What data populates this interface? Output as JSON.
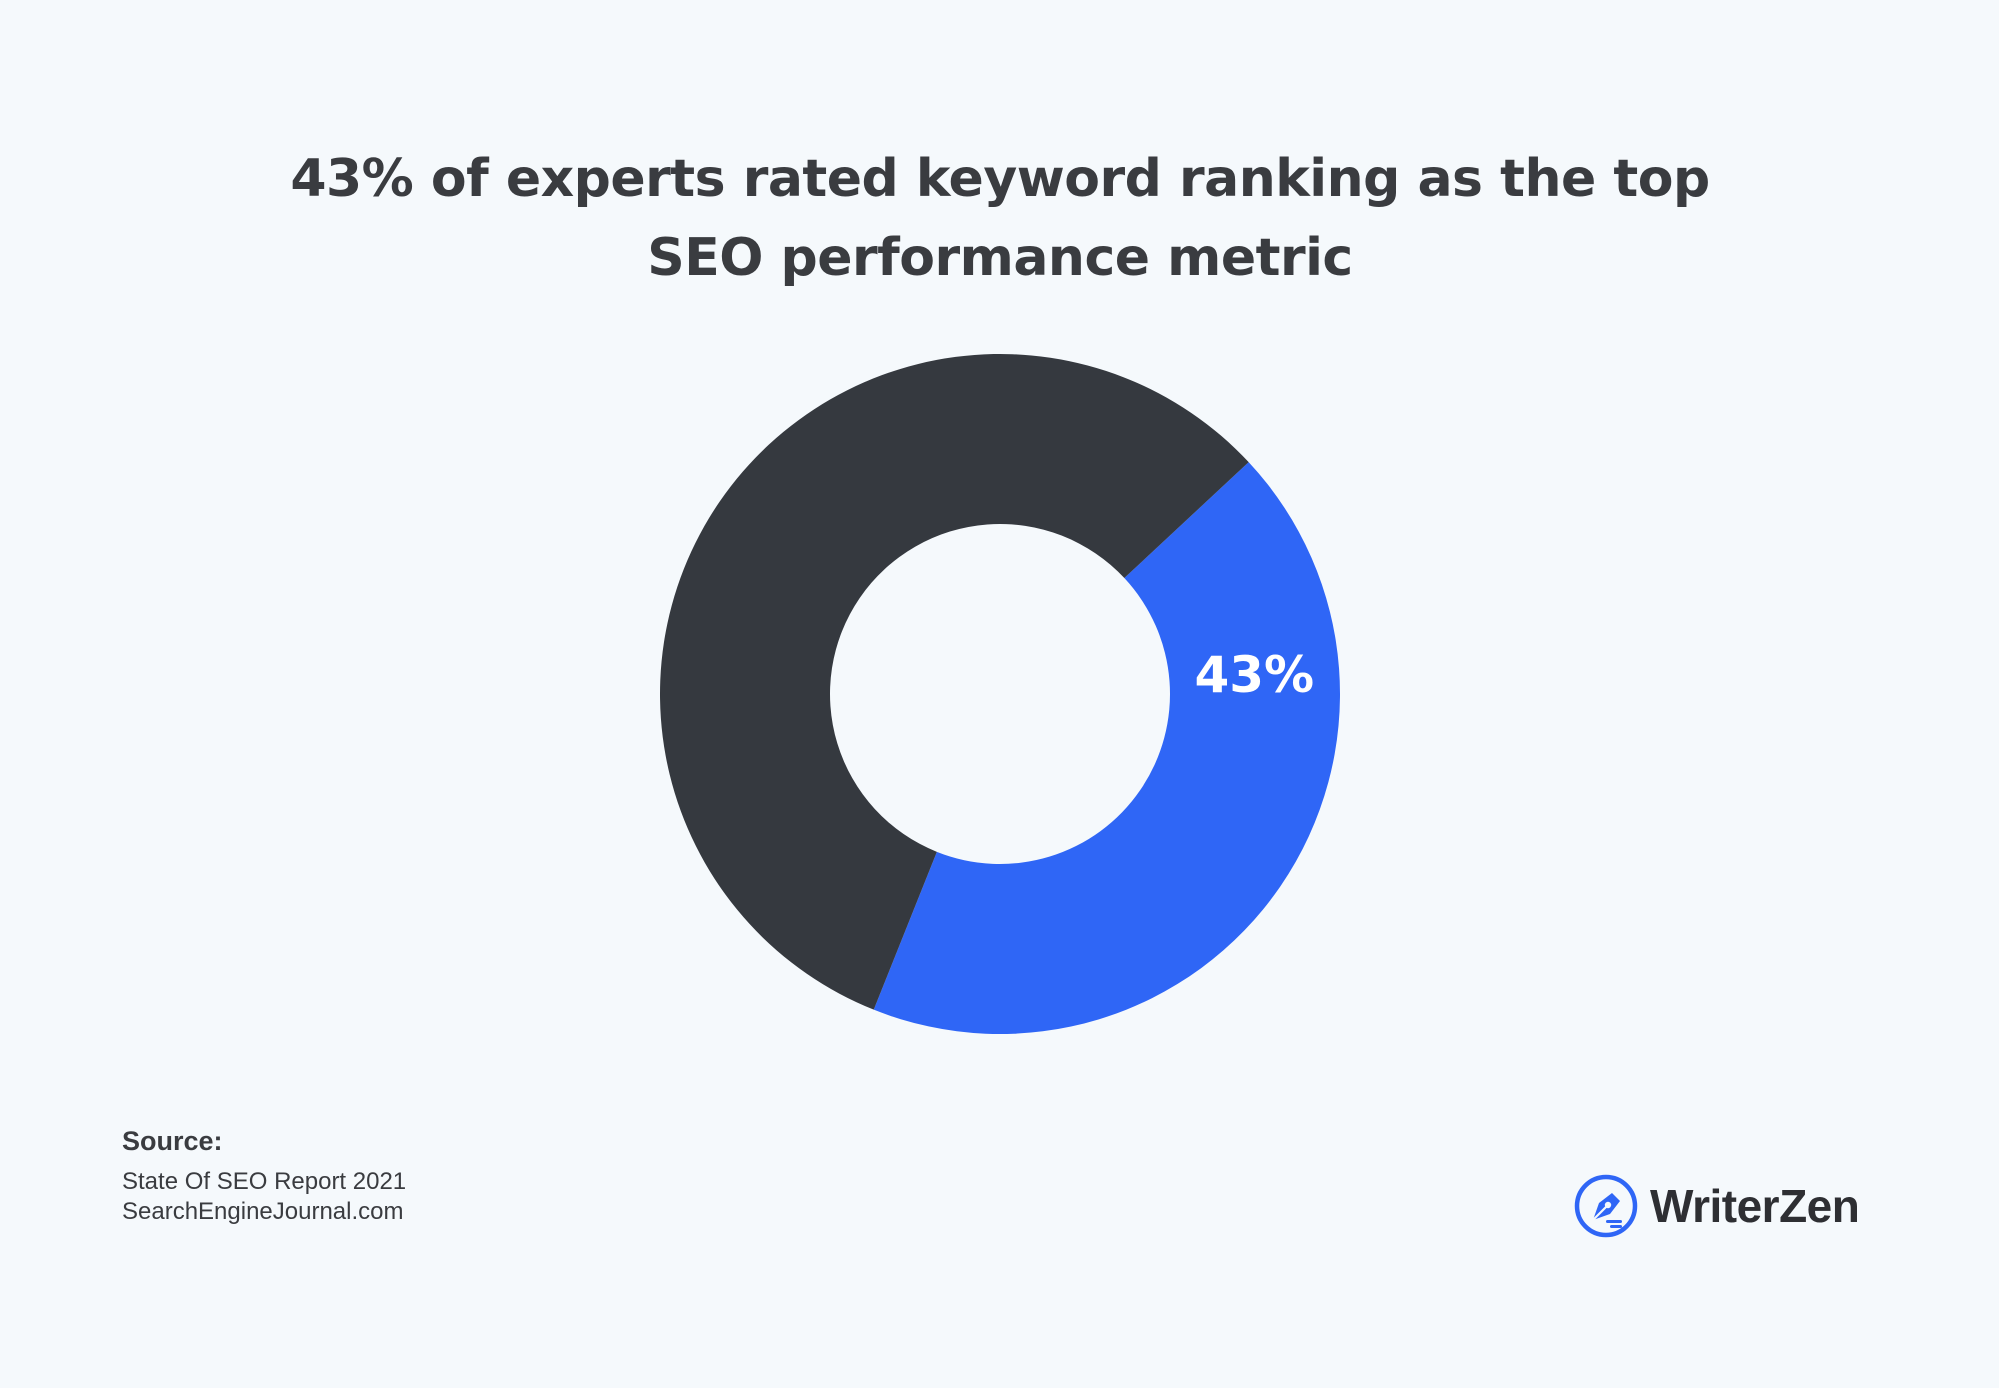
{
  "chart_data": {
    "type": "pie",
    "title": "43% of experts rated keyword ranking as the top SEO performance metric",
    "slices": [
      {
        "value": 43,
        "label": "43%",
        "color": "#2f66f6"
      },
      {
        "value": 57,
        "label": "",
        "color": "#35393f"
      }
    ],
    "donut": true
  },
  "source": {
    "heading": "Source:",
    "lines": [
      "State Of SEO Report 2021",
      "SearchEngineJournal.com"
    ]
  },
  "brand": {
    "name": "WriterZen",
    "icon": "pen-nib-icon",
    "color": "#2f66f6"
  }
}
